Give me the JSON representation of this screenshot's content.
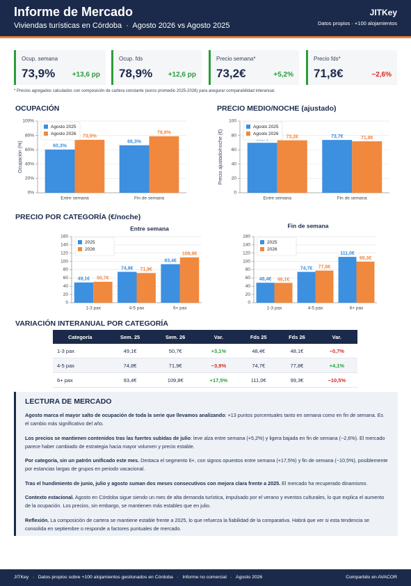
{
  "header": {
    "title": "Informe de Mercado",
    "subtitle": "Viviendas turísticas en Córdoba  ·  Agosto 2026 vs Agosto 2025",
    "brand": "JITKey",
    "source": "Datos propios · +100 alojamientos"
  },
  "kpis": [
    {
      "label": "Ocup. semana",
      "value": "73,9%",
      "change": "+13,6 pp"
    },
    {
      "label": "Ocup. fds",
      "value": "78,9%",
      "change": "+12,6 pp"
    },
    {
      "label": "Precio semana*",
      "value": "73,2€",
      "change": "+5,2%"
    },
    {
      "label": "Precio fds*",
      "value": "71,8€",
      "change": "−2,6%"
    }
  ],
  "note": "* Precios agregados calculados con composición de cartera constante (euros promedio 2025-2026) para asegurar comparabilidad interanual.",
  "sections": {
    "category_price": "PRECIO POR CATEGORÍA (€/noche)",
    "yoy": "VARIACIÓN INTERANUAL POR CATEGORÍA"
  },
  "chart_data": [
    {
      "type": "bar",
      "title": "OCUPACIÓN",
      "y_label": "Ocupación (%)",
      "categories": [
        "Entre semana",
        "Fin de semana"
      ],
      "series": [
        {
          "name": "Agosto 2025",
          "color": "#3d8fe0",
          "values": [
            60.3,
            66.3
          ],
          "value_labels": [
            "60,3%",
            "66,3%"
          ]
        },
        {
          "name": "Agosto 2026",
          "color": "#f0883e",
          "values": [
            73.9,
            78.9
          ],
          "value_labels": [
            "73,9%",
            "78,9%"
          ]
        }
      ],
      "ylim": [
        0,
        100
      ],
      "yticks": [
        {
          "value": 0,
          "label": "0%"
        },
        {
          "value": 20,
          "label": "20%"
        },
        {
          "value": 40,
          "label": "40%"
        },
        {
          "value": 60,
          "label": "60%"
        },
        {
          "value": 80,
          "label": "80%"
        },
        {
          "value": 100,
          "label": "100%"
        }
      ],
      "grid": true,
      "legend": "upper left"
    },
    {
      "type": "bar",
      "title": "PRECIO MEDIO/NOCHE (ajustado)",
      "y_label": "Precio ajustado/noche (€)",
      "categories": [
        "Entre semana",
        "Fin de semana"
      ],
      "series": [
        {
          "name": "Agosto 2025",
          "color": "#3d8fe0",
          "values": [
            69.7,
            73.7
          ],
          "value_labels": [
            "69,7€",
            "73,7€"
          ]
        },
        {
          "name": "Agosto 2026",
          "color": "#f0883e",
          "values": [
            73.2,
            71.8
          ],
          "value_labels": [
            "73,2€",
            "71,8€"
          ]
        }
      ],
      "ylim": [
        0,
        100
      ],
      "yticks": [
        0,
        20,
        40,
        60,
        80,
        100
      ],
      "grid": true,
      "legend": "upper left"
    },
    {
      "type": "bar",
      "title": "Entre semana",
      "categories": [
        "1-3 pax",
        "4-5 pax",
        "6+ pax"
      ],
      "series": [
        {
          "name": "2025",
          "color": "#3d8fe0",
          "values": [
            49.1,
            74.8,
            93.4
          ],
          "value_labels": [
            "49,1€",
            "74,8€",
            "93,4€"
          ]
        },
        {
          "name": "2026",
          "color": "#f0883e",
          "values": [
            50.7,
            71.9,
            109.8
          ],
          "value_labels": [
            "50,7€",
            "71,9€",
            "109,8€"
          ]
        }
      ],
      "ylim": [
        0,
        160
      ],
      "yticks": [
        0,
        20,
        40,
        60,
        80,
        100,
        120,
        140,
        160
      ],
      "grid": true,
      "legend": "upper left"
    },
    {
      "type": "bar",
      "title": "Fin de semana",
      "categories": [
        "1-3 pax",
        "4-5 pax",
        "6+ pax"
      ],
      "series": [
        {
          "name": "2025",
          "color": "#3d8fe0",
          "values": [
            48.4,
            74.7,
            111.0
          ],
          "value_labels": [
            "48,4€",
            "74,7€",
            "111,0€"
          ]
        },
        {
          "name": "2026",
          "color": "#f0883e",
          "values": [
            48.1,
            77.8,
            99.3
          ],
          "value_labels": [
            "48,1€",
            "77,8€",
            "99,3€"
          ]
        }
      ],
      "ylim": [
        0,
        160
      ],
      "yticks": [
        0,
        20,
        40,
        60,
        80,
        100,
        120,
        140,
        160
      ],
      "grid": true,
      "legend": "upper left"
    }
  ],
  "table": {
    "header": [
      "Categoría",
      "Sem. 25",
      "Sem. 26",
      "Var.",
      "Fds 25",
      "Fds 26",
      "Var."
    ],
    "rows": [
      [
        "1-3 pax",
        "49,1€",
        "50,7€",
        "+3,1%",
        "48,4€",
        "48,1€",
        "−0,7%"
      ],
      [
        "4-5 pax",
        "74,8€",
        "71,9€",
        "−3,9%",
        "74,7€",
        "77,8€",
        "+4,1%"
      ],
      [
        "6+ pax",
        "93,4€",
        "109,8€",
        "+17,5%",
        "111,0€",
        "99,3€",
        "−10,5%"
      ]
    ]
  },
  "reading": {
    "title": "LECTURA DE MERCADO",
    "paragraphs": [
      {
        "lead": "Agosto marca el mayor salto de ocupación de toda la serie que llevamos analizando",
        "text": ": +13 puntos porcentuales tanto en semana como en fin de semana. Es el cambio más significativo del año."
      },
      {
        "lead": "Los precios se mantienen contenidos tras las fuertes subidas de julio",
        "text": ": leve alza entre semana (+5,2%) y ligera bajada en fin de semana (−2,6%). El mercado parece haber cambiado de estrategia hacia mayor volumen y precio estable."
      },
      {
        "lead": "Por categoría, sin un patrón unificado este mes.",
        "text": " Destaca el segmento 6+, con signos opuestos entre semana (+17,5%) y fin de semana (−10,5%), posiblemente por estancias largas de grupos en periodo vacacional."
      },
      {
        "lead": "Tras el hundimiento de junio, julio y agosto suman dos meses consecutivos con mejora clara frente a 2025.",
        "text": " El mercado ha recuperado dinamismo."
      },
      {
        "lead": "Contexto estacional.",
        "text": " Agosto en Córdoba sigue siendo un mes de alta demanda turística, impulsado por el verano y eventos culturales, lo que explica el aumento de la ocupación. Los precios, sin embargo, se mantienen más estables que en julio."
      },
      {
        "lead": "Reflexión.",
        "text": " La composición de cartera se mantiene estable frente a 2025, lo que refuerza la fiabilidad de la comparativa. Habrá que ver si esta tendencia se consolida en septiembre o responde a factores puntuales de mercado."
      }
    ]
  },
  "footer": {
    "left": "JITKey   ·   Datos propios sobre +100 alojamientos gestionados en Córdoba   ·   Informe no comercial   ·   Agosto 2026",
    "right": "Compartido en AVACOR"
  }
}
